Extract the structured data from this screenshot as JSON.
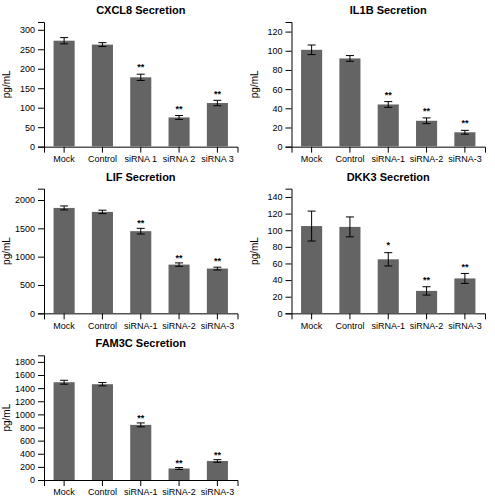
{
  "chart_data": [
    {
      "type": "bar",
      "title": "CXCL8 Secretion",
      "ylabel": "pg/mL",
      "categories": [
        "Mock",
        "Control",
        "siRNA 1",
        "siRNA 2",
        "siRNA 3"
      ],
      "values": [
        272,
        262,
        178,
        75,
        112
      ],
      "errors": [
        8,
        5,
        8,
        5,
        7
      ],
      "color": "#646464",
      "ylim": [
        0,
        320
      ],
      "yticks": [
        0,
        50,
        100,
        150,
        200,
        250,
        300
      ],
      "grid": false,
      "annotations": [
        {
          "x": "siRNA 1",
          "y": 193,
          "text": "**"
        },
        {
          "x": "siRNA 2",
          "y": 87,
          "text": "**"
        },
        {
          "x": "siRNA 3",
          "y": 125,
          "text": "**"
        }
      ]
    },
    {
      "type": "bar",
      "title": "IL1B Secretion",
      "ylabel": "pg/mL",
      "categories": [
        "Mock",
        "Control",
        "siRNA-1",
        "siRNA-2",
        "siRNA-3"
      ],
      "values": [
        101,
        92,
        44,
        27,
        15
      ],
      "errors": [
        5,
        3,
        3,
        3,
        2
      ],
      "color": "#646464",
      "ylim": [
        0,
        130
      ],
      "yticks": [
        0,
        20,
        40,
        60,
        80,
        100,
        120
      ],
      "grid": false,
      "annotations": [
        {
          "x": "siRNA-1",
          "y": 50,
          "text": "**"
        },
        {
          "x": "siRNA-2",
          "y": 33,
          "text": "**"
        },
        {
          "x": "siRNA-3",
          "y": 20,
          "text": "**"
        }
      ]
    },
    {
      "type": "bar",
      "title": "LIF Secretion",
      "ylabel": "pg/mL",
      "categories": [
        "Mock",
        "Control",
        "siRNA-1",
        "siRNA-2",
        "siRNA-3"
      ],
      "values": [
        1860,
        1790,
        1450,
        860,
        790
      ],
      "errors": [
        35,
        30,
        50,
        30,
        25
      ],
      "color": "#646464",
      "ylim": [
        0,
        2200
      ],
      "yticks": [
        0,
        500,
        1000,
        1500,
        2000
      ],
      "grid": false,
      "annotations": [
        {
          "x": "siRNA-1",
          "y": 1520,
          "text": "**"
        },
        {
          "x": "siRNA-2",
          "y": 910,
          "text": "**"
        },
        {
          "x": "siRNA-3",
          "y": 845,
          "text": "**"
        }
      ]
    },
    {
      "type": "bar",
      "title": "DKK3 Secretion",
      "ylabel": "pg/mL",
      "categories": [
        "Mock",
        "Control",
        "siRNA-1",
        "siRNA-2",
        "siRNA-3"
      ],
      "values": [
        105,
        104,
        65,
        27,
        42
      ],
      "errors": [
        18,
        12,
        8,
        5,
        6
      ],
      "color": "#646464",
      "ylim": [
        0,
        150
      ],
      "yticks": [
        0,
        20,
        40,
        60,
        80,
        100,
        120,
        140
      ],
      "grid": false,
      "annotations": [
        {
          "x": "siRNA-1",
          "y": 77,
          "text": "*"
        },
        {
          "x": "siRNA-2",
          "y": 35,
          "text": "**"
        },
        {
          "x": "siRNA-3",
          "y": 51,
          "text": "**"
        }
      ]
    },
    {
      "type": "bar",
      "title": "FAM3C Secretion",
      "ylabel": "pg/mL",
      "categories": [
        "Mock",
        "Control",
        "siRNA-1",
        "siRNA-2",
        "siRNA-3"
      ],
      "values": [
        1490,
        1460,
        840,
        175,
        290
      ],
      "errors": [
        30,
        25,
        30,
        15,
        20
      ],
      "color": "#646464",
      "ylim": [
        0,
        1900
      ],
      "yticks": [
        0,
        200,
        400,
        600,
        800,
        1000,
        1200,
        1400,
        1600,
        1800
      ],
      "grid": false,
      "annotations": [
        {
          "x": "siRNA-1",
          "y": 885,
          "text": "**"
        },
        {
          "x": "siRNA-2",
          "y": 200,
          "text": "**"
        },
        {
          "x": "siRNA-3",
          "y": 320,
          "text": "**"
        }
      ]
    }
  ]
}
